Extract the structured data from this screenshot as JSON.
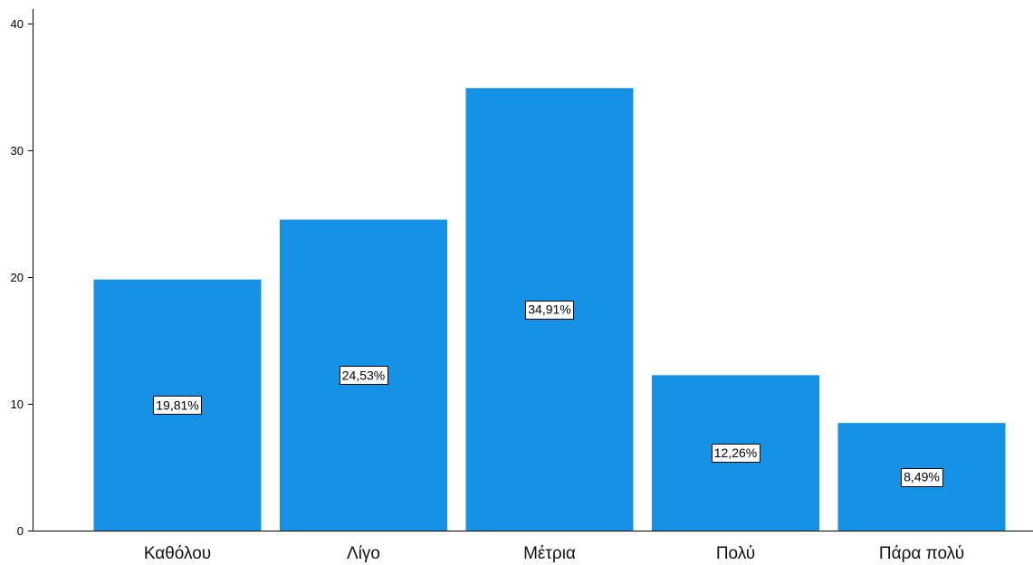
{
  "chart_data": {
    "type": "bar",
    "categories": [
      "Καθόλου",
      "Λίγο",
      "Μέτρια",
      "Πολύ",
      "Πάρα πολύ"
    ],
    "values": [
      19.81,
      24.53,
      34.91,
      12.26,
      8.49
    ],
    "data_labels": [
      "19,81%",
      "24,53%",
      "34,91%",
      "12,26%",
      "8,49%"
    ],
    "yticks": [
      0,
      10,
      20,
      30,
      40
    ],
    "ylim": [
      0,
      40
    ],
    "title": "",
    "xlabel": "",
    "ylabel": "",
    "grid": false,
    "bar_color": "#1591e6"
  }
}
